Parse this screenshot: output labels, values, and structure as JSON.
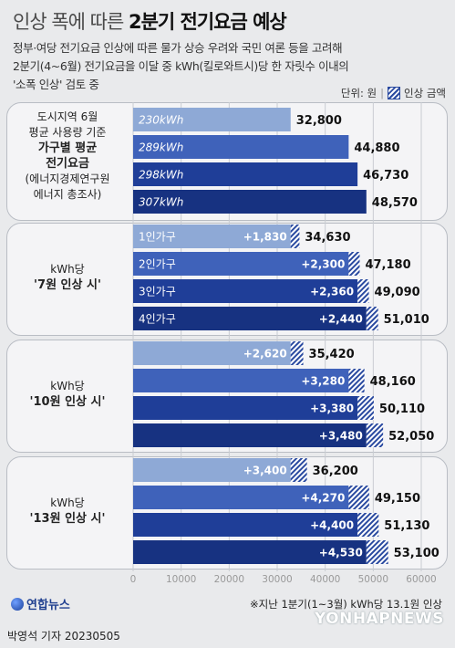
{
  "title_light": "인상 폭에 따른 ",
  "title_bold": "2분기 전기요금 예상",
  "subtitle": [
    "정부·여당 전기요금 인상에 따른 물가 상승 우려와 국민 여론 등을 고려해",
    "2분기(4~6월) 전기요금을 이달 중 kWh(킬로와트시)당 한 자릿수 이내의",
    "'소폭 인상' 검토 중"
  ],
  "legend": {
    "unit": "단위: 원",
    "increase": "인상 금액"
  },
  "colors": {
    "light": "#8ea9d6",
    "mid": "#3f62ba",
    "dark": "#1f3e98",
    "darkest": "#173281",
    "increase_stripe": "#2a4aa0"
  },
  "chart_data": {
    "type": "bar",
    "orientation": "horizontal",
    "stacked": true,
    "xlim": [
      0,
      60000
    ],
    "xticks": [
      "0",
      "10000",
      "20000",
      "30000",
      "40000",
      "50000",
      "60000"
    ],
    "groups": [
      {
        "label": [
          "도시지역 6월",
          "평균 사용량 기준",
          "가구별 평균",
          "전기요금",
          "(에너지경제연구원",
          "에너지 총조사)"
        ],
        "bars": [
          {
            "category": "230kWh",
            "base": 32800,
            "increase": null,
            "total_label": "32,800",
            "increase_label": ""
          },
          {
            "category": "289kWh",
            "base": 44880,
            "increase": null,
            "total_label": "44,880",
            "increase_label": ""
          },
          {
            "category": "298kWh",
            "base": 46730,
            "increase": null,
            "total_label": "46,730",
            "increase_label": ""
          },
          {
            "category": "307kWh",
            "base": 48570,
            "increase": null,
            "total_label": "48,570",
            "increase_label": ""
          }
        ]
      },
      {
        "label": [
          "kWh당",
          "'7원 인상 시'"
        ],
        "bars": [
          {
            "category": "1인가구",
            "base": 32800,
            "increase": 1830,
            "total_label": "34,630",
            "increase_label": "+1,830"
          },
          {
            "category": "2인가구",
            "base": 44880,
            "increase": 2300,
            "total_label": "47,180",
            "increase_label": "+2,300"
          },
          {
            "category": "3인가구",
            "base": 46730,
            "increase": 2360,
            "total_label": "49,090",
            "increase_label": "+2,360"
          },
          {
            "category": "4인가구",
            "base": 48570,
            "increase": 2440,
            "total_label": "51,010",
            "increase_label": "+2,440"
          }
        ]
      },
      {
        "label": [
          "kWh당",
          "'10원 인상 시'"
        ],
        "bars": [
          {
            "category": "",
            "base": 32800,
            "increase": 2620,
            "total_label": "35,420",
            "increase_label": "+2,620"
          },
          {
            "category": "",
            "base": 44880,
            "increase": 3280,
            "total_label": "48,160",
            "increase_label": "+3,280"
          },
          {
            "category": "",
            "base": 46730,
            "increase": 3380,
            "total_label": "50,110",
            "increase_label": "+3,380"
          },
          {
            "category": "",
            "base": 48570,
            "increase": 3480,
            "total_label": "52,050",
            "increase_label": "+3,480"
          }
        ]
      },
      {
        "label": [
          "kWh당",
          "'13원 인상 시'"
        ],
        "bars": [
          {
            "category": "",
            "base": 32800,
            "increase": 3400,
            "total_label": "36,200",
            "increase_label": "+3,400"
          },
          {
            "category": "",
            "base": 44880,
            "increase": 4270,
            "total_label": "49,150",
            "increase_label": "+4,270"
          },
          {
            "category": "",
            "base": 46730,
            "increase": 4400,
            "total_label": "51,130",
            "increase_label": "+4,400"
          },
          {
            "category": "",
            "base": 48570,
            "increase": 4530,
            "total_label": "53,100",
            "increase_label": "+4,530"
          }
        ]
      }
    ]
  },
  "footer": {
    "logo": "연합뉴스",
    "note": "※지난 1분기(1~3월) kWh당 13.1원 인상",
    "byline": "박영석 기자  20230505",
    "watermark": "YONHAPNEWS"
  }
}
